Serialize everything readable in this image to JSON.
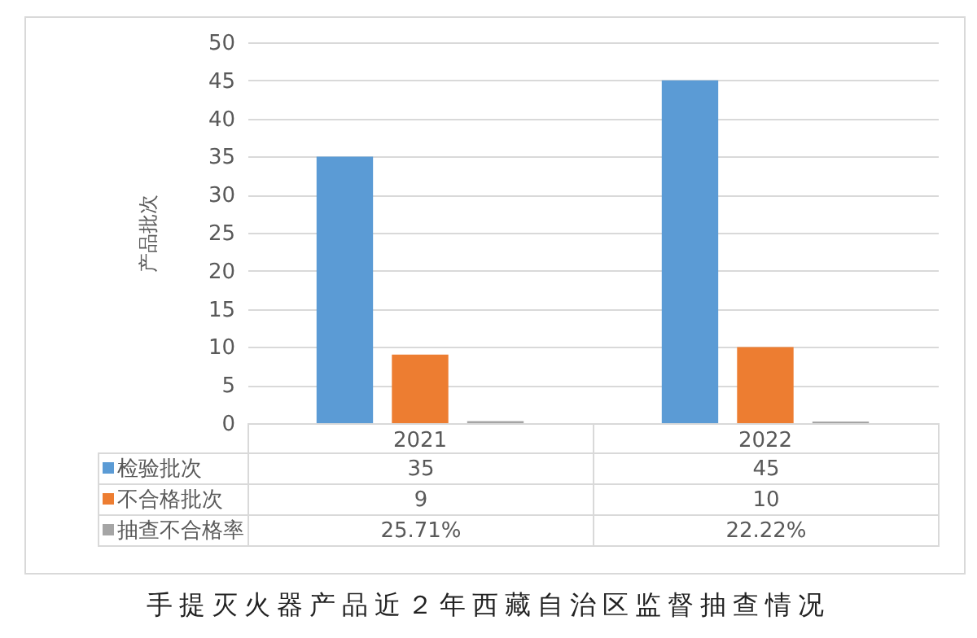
{
  "chart_data": {
    "type": "bar",
    "title": "手提灭火器产品近２年西藏自治区监督抽查情况",
    "ylabel": "产品批次",
    "categories": [
      "2021",
      "2022"
    ],
    "series": [
      {
        "name": "检验批次",
        "color": "#5b9bd5",
        "values": [
          35,
          45
        ],
        "value_labels": [
          "35",
          "45"
        ]
      },
      {
        "name": "不合格批次",
        "color": "#ed7d31",
        "values": [
          9,
          10
        ],
        "value_labels": [
          "9",
          "10"
        ]
      },
      {
        "name": "抽查不合格率",
        "color": "#a5a5a5",
        "values": [
          0.2571,
          0.2222
        ],
        "value_labels": [
          "25.71%",
          "22.22%"
        ]
      }
    ],
    "ylim": [
      0,
      50
    ],
    "yticks": [
      0,
      5,
      10,
      15,
      20,
      25,
      30,
      35,
      40,
      45,
      50
    ],
    "grid": "y",
    "legend": "bottom"
  }
}
